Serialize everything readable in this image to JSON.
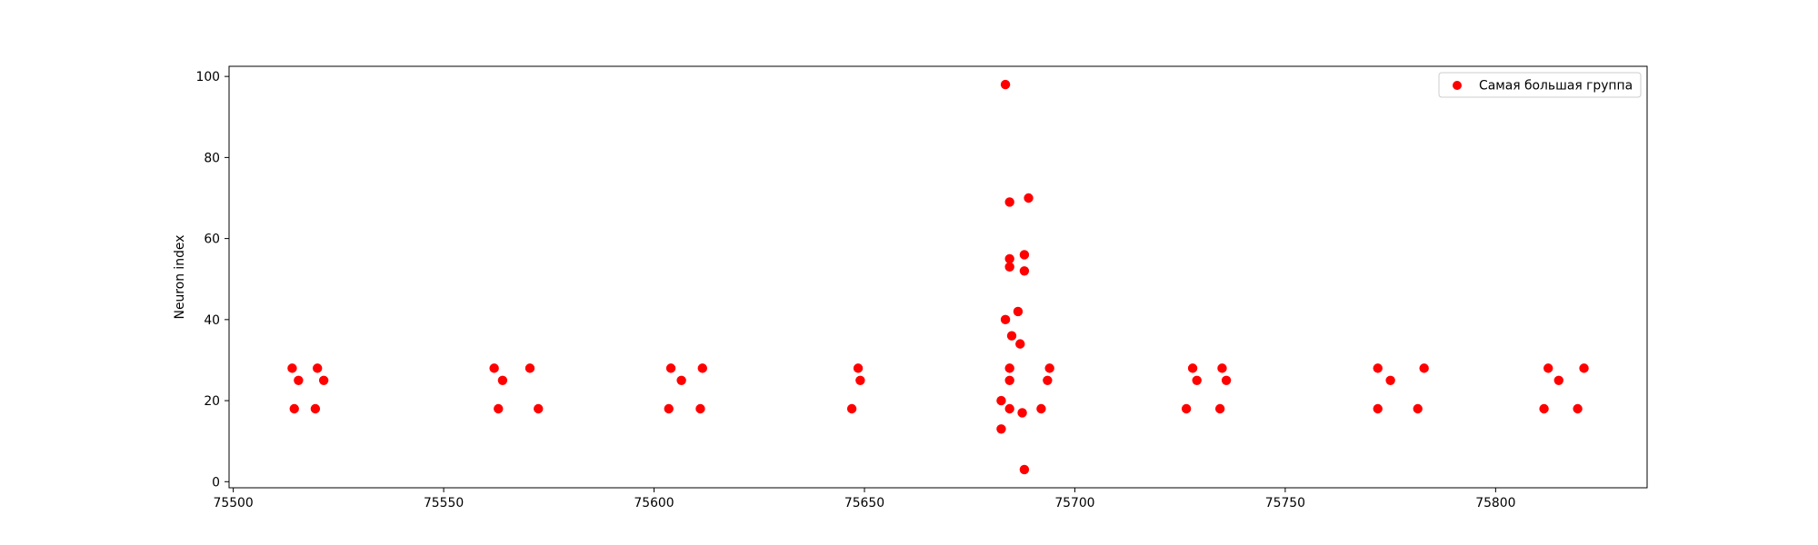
{
  "chart_data": {
    "type": "scatter",
    "title": "",
    "xlabel": "",
    "ylabel": "Neuron index",
    "xlim": [
      75499,
      75836
    ],
    "ylim": [
      -1.5,
      102.5
    ],
    "xticks": [
      75500,
      75550,
      75600,
      75650,
      75700,
      75750,
      75800
    ],
    "yticks": [
      0,
      20,
      40,
      60,
      80,
      100
    ],
    "grid": false,
    "legend_position": "top-right",
    "series": [
      {
        "name": "Самая большая группа",
        "color": "#ff0000",
        "points": [
          [
            75514,
            28
          ],
          [
            75515.5,
            25
          ],
          [
            75514.5,
            18
          ],
          [
            75520,
            28
          ],
          [
            75521.5,
            25
          ],
          [
            75519.5,
            18
          ],
          [
            75562,
            28
          ],
          [
            75564,
            25
          ],
          [
            75563,
            18
          ],
          [
            75570.5,
            28
          ],
          [
            75572.5,
            18
          ],
          [
            75604,
            28
          ],
          [
            75606.5,
            25
          ],
          [
            75603.5,
            18
          ],
          [
            75611.5,
            28
          ],
          [
            75611,
            18
          ],
          [
            75648.5,
            28
          ],
          [
            75649,
            25
          ],
          [
            75647,
            18
          ],
          [
            75683.5,
            98
          ],
          [
            75684.5,
            69
          ],
          [
            75689,
            70
          ],
          [
            75684.5,
            55
          ],
          [
            75688,
            56
          ],
          [
            75684.5,
            53
          ],
          [
            75688,
            52
          ],
          [
            75683.5,
            40
          ],
          [
            75686.5,
            42
          ],
          [
            75685,
            36
          ],
          [
            75687,
            34
          ],
          [
            75684.5,
            28
          ],
          [
            75684.5,
            25
          ],
          [
            75682.5,
            20
          ],
          [
            75684.5,
            18
          ],
          [
            75687.5,
            17
          ],
          [
            75682.5,
            13
          ],
          [
            75688,
            3
          ],
          [
            75694,
            28
          ],
          [
            75693.5,
            25
          ],
          [
            75692,
            18
          ],
          [
            75728,
            28
          ],
          [
            75729,
            25
          ],
          [
            75726.5,
            18
          ],
          [
            75735,
            28
          ],
          [
            75736,
            25
          ],
          [
            75734.5,
            18
          ],
          [
            75772,
            28
          ],
          [
            75775,
            25
          ],
          [
            75772,
            18
          ],
          [
            75783,
            28
          ],
          [
            75781.5,
            18
          ],
          [
            75812.5,
            28
          ],
          [
            75815,
            25
          ],
          [
            75811.5,
            18
          ],
          [
            75821,
            28
          ],
          [
            75819.5,
            18
          ]
        ]
      }
    ]
  }
}
